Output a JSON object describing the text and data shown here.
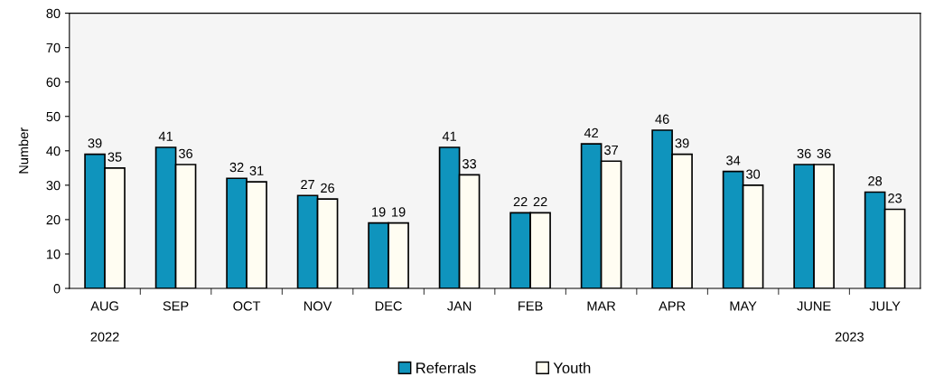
{
  "chart_data": {
    "type": "bar",
    "ylabel": "Number",
    "categories": [
      "AUG",
      "SEP",
      "OCT",
      "NOV",
      "DEC",
      "JAN",
      "FEB",
      "MAR",
      "APR",
      "MAY",
      "JUNE",
      "JULY"
    ],
    "series": [
      {
        "name": "Referrals",
        "color": "#0f94bd",
        "values": [
          39,
          41,
          32,
          27,
          19,
          41,
          22,
          42,
          46,
          34,
          36,
          28
        ]
      },
      {
        "name": "Youth",
        "color": "#fffdf2",
        "values": [
          35,
          36,
          31,
          26,
          19,
          33,
          22,
          37,
          39,
          30,
          36,
          23
        ]
      }
    ],
    "ylim": [
      0,
      80
    ],
    "yticks": [
      0,
      10,
      20,
      30,
      40,
      50,
      60,
      70,
      80
    ],
    "data_labels": true,
    "legend": "bottom",
    "grid": false,
    "annotations": [
      "2022",
      "2023"
    ]
  }
}
